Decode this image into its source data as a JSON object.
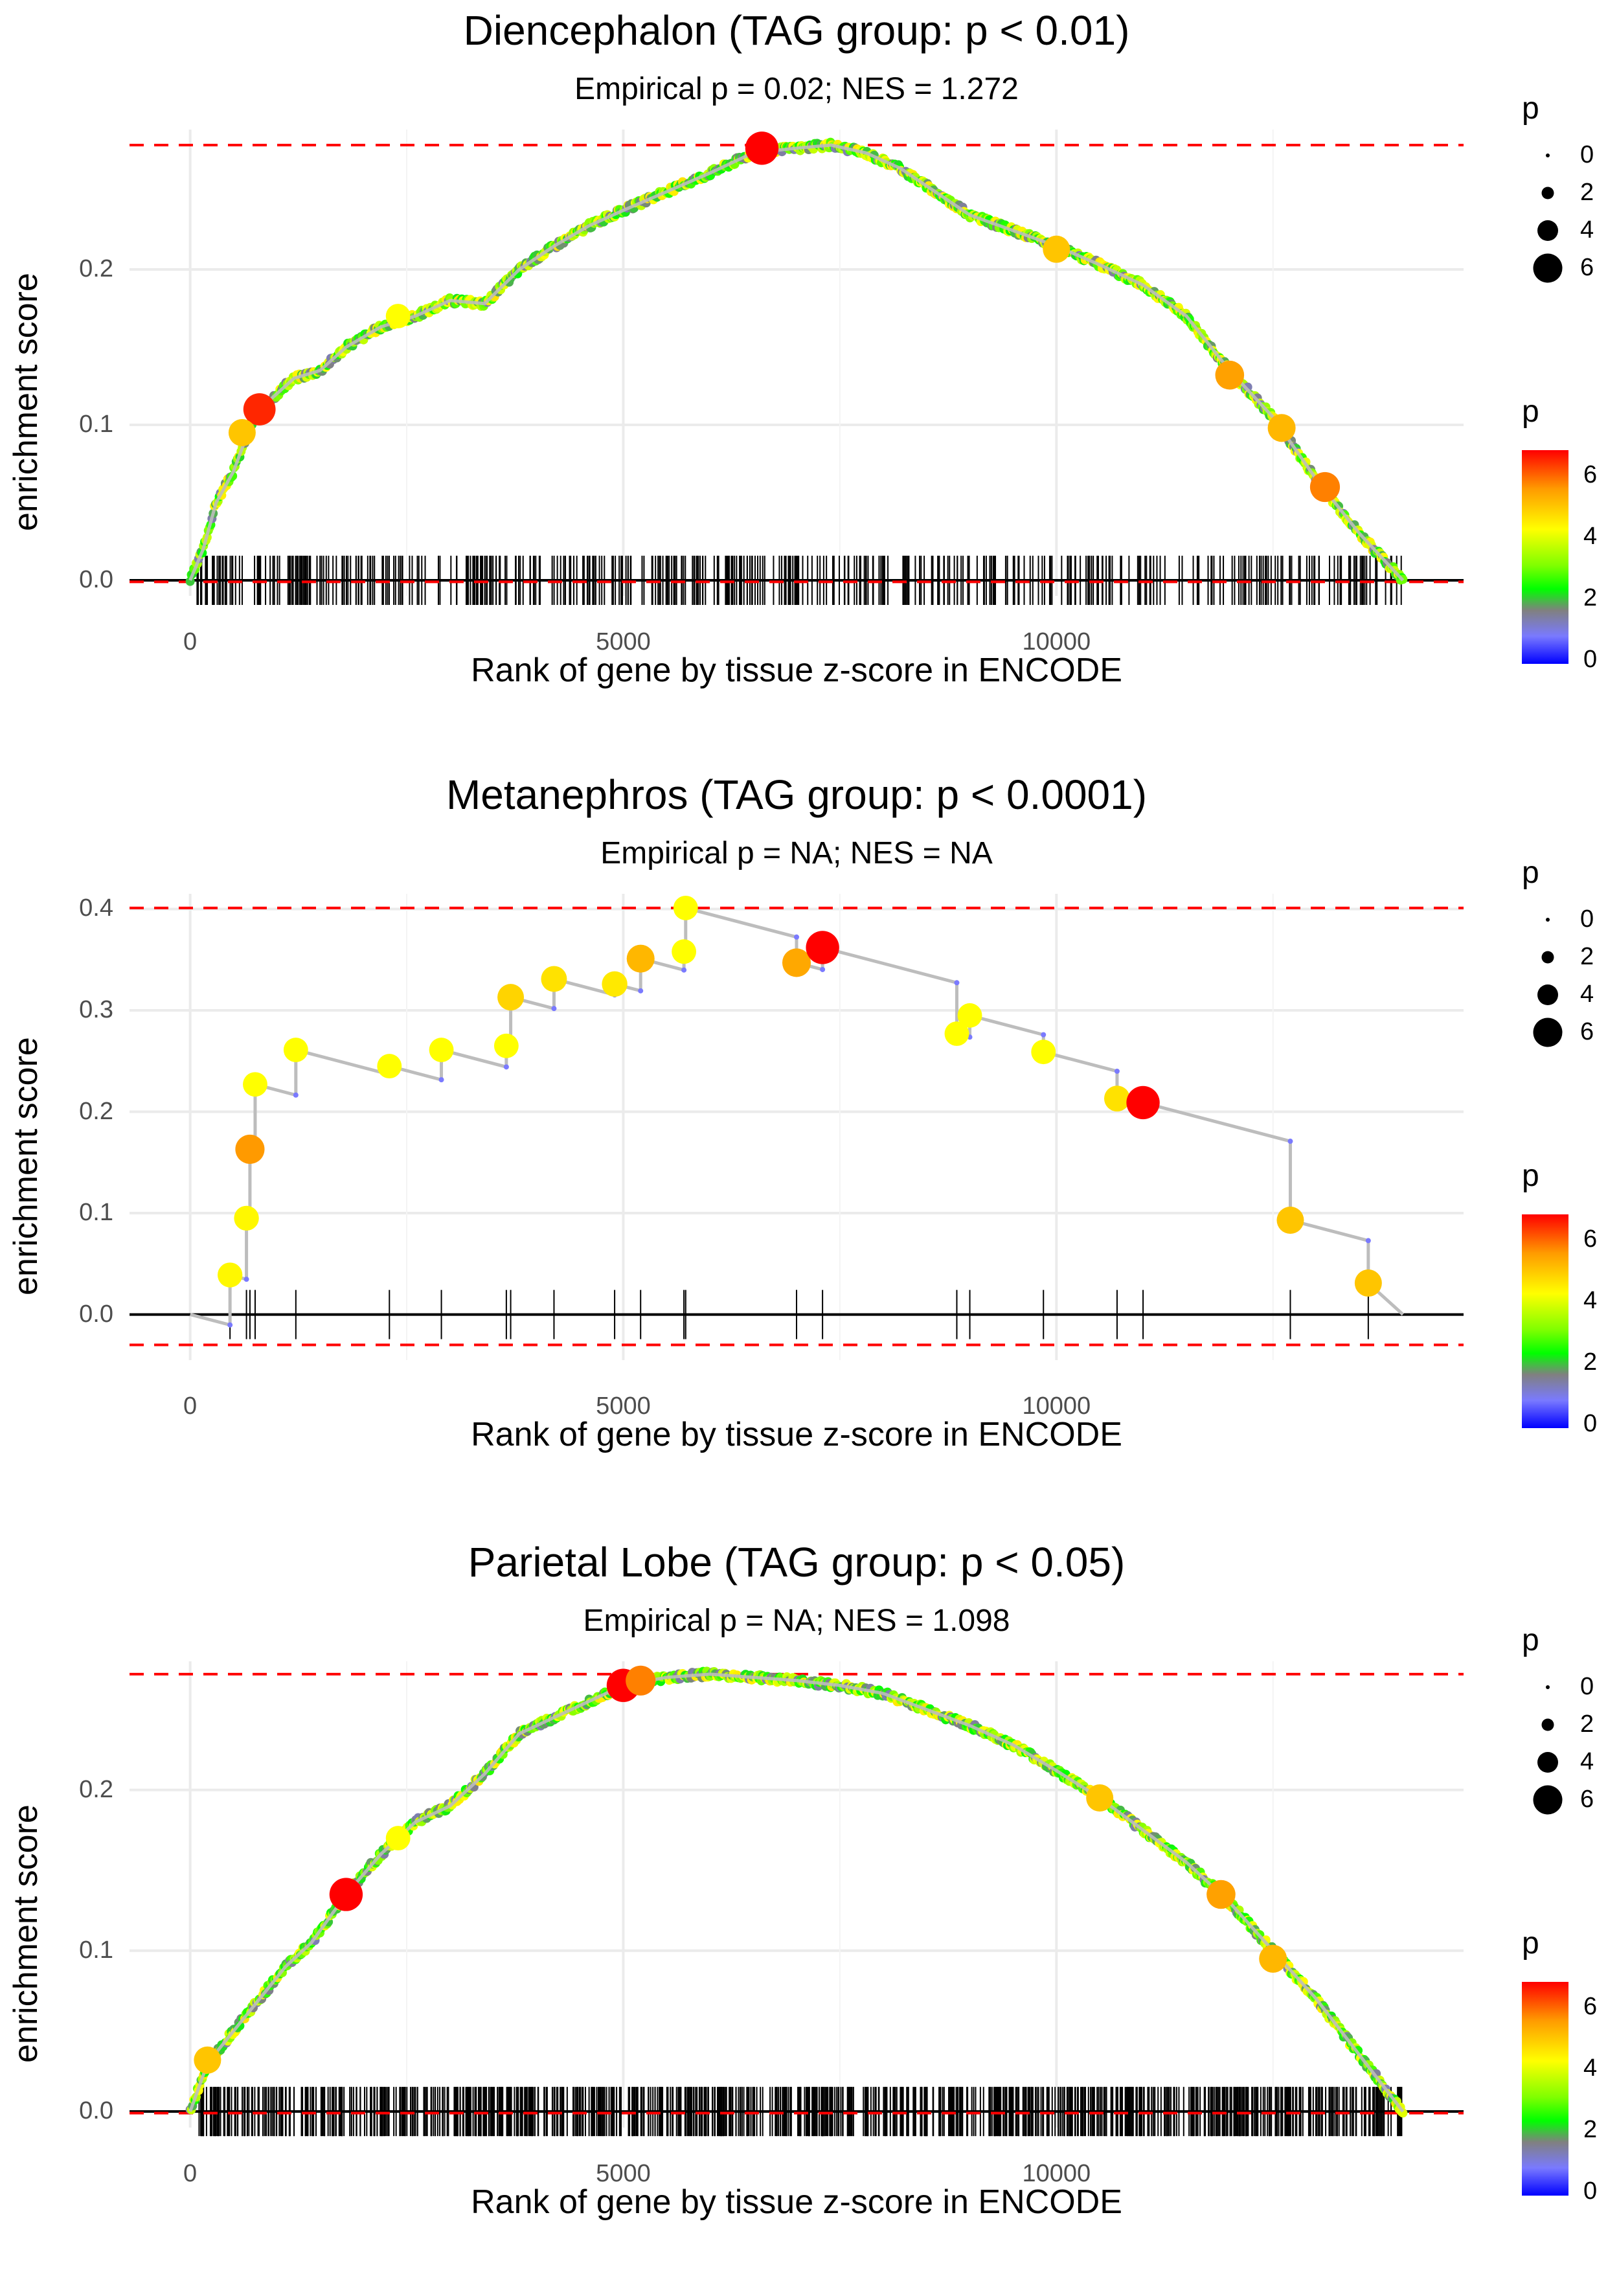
{
  "common": {
    "xlabel": "Rank of gene by tissue z-score in ENCODE",
    "ylabel": "enrichment score",
    "legend_title": "p",
    "size_legend_labels": [
      "0",
      "2",
      "4",
      "6"
    ],
    "color_legend_labels": [
      "6",
      "4",
      "2",
      "0"
    ],
    "colors": {
      "threshold_line": "#ff0000",
      "running_line": "#bdbdbd",
      "grid": "#ebebeb",
      "hit_ticks": "#000000"
    }
  },
  "chart_data": [
    {
      "type": "line",
      "title": "Diencephalon (TAG group: p < 0.01)",
      "subtitle": "Empirical p = 0.02; NES = 1.272",
      "xlabel": "Rank of gene by tissue z-score in ENCODE",
      "ylabel": "enrichment score",
      "xlim": [
        -700,
        14700
      ],
      "ylim": [
        -0.01,
        0.29
      ],
      "xticks": [
        0,
        5000,
        10000
      ],
      "yticks": [
        0.0,
        0.1,
        0.2
      ],
      "ytick_labels": [
        "0.0",
        "0.1",
        "0.2"
      ],
      "hlines": [
        0.28,
        -0.001
      ],
      "curve": [
        [
          0,
          0
        ],
        [
          150,
          0.02
        ],
        [
          300,
          0.05
        ],
        [
          500,
          0.07
        ],
        [
          700,
          0.1
        ],
        [
          900,
          0.115
        ],
        [
          1200,
          0.13
        ],
        [
          1500,
          0.135
        ],
        [
          1800,
          0.15
        ],
        [
          2200,
          0.163
        ],
        [
          2600,
          0.17
        ],
        [
          3000,
          0.18
        ],
        [
          3400,
          0.178
        ],
        [
          3800,
          0.2
        ],
        [
          4200,
          0.215
        ],
        [
          4600,
          0.228
        ],
        [
          5000,
          0.238
        ],
        [
          5500,
          0.25
        ],
        [
          6000,
          0.262
        ],
        [
          6500,
          0.275
        ],
        [
          7000,
          0.278
        ],
        [
          7400,
          0.28
        ],
        [
          7800,
          0.275
        ],
        [
          8200,
          0.265
        ],
        [
          8600,
          0.25
        ],
        [
          9000,
          0.235
        ],
        [
          9500,
          0.225
        ],
        [
          10000,
          0.215
        ],
        [
          10500,
          0.203
        ],
        [
          11000,
          0.19
        ],
        [
          11500,
          0.17
        ],
        [
          12000,
          0.135
        ],
        [
          12500,
          0.105
        ],
        [
          13000,
          0.065
        ],
        [
          13500,
          0.03
        ],
        [
          14000,
          0.0
        ]
      ],
      "highlight_points": [
        [
          800,
          0.11,
          6.5
        ],
        [
          600,
          0.095,
          5.0
        ],
        [
          2400,
          0.17,
          4.2
        ],
        [
          6600,
          0.278,
          6.8
        ],
        [
          10000,
          0.213,
          5.0
        ],
        [
          12000,
          0.132,
          5.5
        ],
        [
          12600,
          0.098,
          5.2
        ],
        [
          13100,
          0.06,
          5.8
        ]
      ],
      "hit_ranks": "dense",
      "hit_count": 470,
      "hit_range": [
        80,
        14000
      ]
    },
    {
      "type": "line",
      "title": "Metanephros (TAG group: p < 0.0001)",
      "subtitle": "Empirical p = NA; NES = NA",
      "xlabel": "Rank of gene by tissue z-score in ENCODE",
      "ylabel": "enrichment score",
      "xlim": [
        -700,
        14700
      ],
      "ylim": [
        -0.045,
        0.415
      ],
      "xticks": [
        0,
        5000,
        10000
      ],
      "yticks": [
        0.0,
        0.1,
        0.2,
        0.3,
        0.4
      ],
      "ytick_labels": [
        "0.0",
        "0.1",
        "0.2",
        "0.3",
        "0.4"
      ],
      "hlines": [
        0.401,
        -0.03
      ],
      "hits": [
        [
          460,
          0.039,
          4.3
        ],
        [
          650,
          0.095,
          4.3
        ],
        [
          690,
          0.163,
          5.6
        ],
        [
          750,
          0.227,
          4.2
        ],
        [
          1220,
          0.261,
          4.2
        ],
        [
          2300,
          0.245,
          4.2
        ],
        [
          2900,
          0.261,
          4.2
        ],
        [
          3650,
          0.265,
          4.2
        ],
        [
          3700,
          0.313,
          4.8
        ],
        [
          4200,
          0.331,
          4.6
        ],
        [
          4900,
          0.326,
          4.5
        ],
        [
          5200,
          0.351,
          5.2
        ],
        [
          5700,
          0.358,
          4.2
        ],
        [
          5720,
          0.401,
          4.2
        ],
        [
          7000,
          0.347,
          5.4
        ],
        [
          7300,
          0.362,
          6.8
        ],
        [
          8850,
          0.277,
          4.2
        ],
        [
          9000,
          0.295,
          4.2
        ],
        [
          9850,
          0.259,
          4.2
        ],
        [
          10700,
          0.213,
          4.6
        ],
        [
          11000,
          0.209,
          6.8
        ],
        [
          12700,
          0.093,
          5.0
        ],
        [
          13600,
          0.031,
          5.0
        ]
      ],
      "curve_end": [
        14000,
        0.0
      ],
      "hit_ranks": [
        460,
        650,
        690,
        750,
        1220,
        2300,
        2900,
        3650,
        3700,
        4200,
        4900,
        5200,
        5700,
        5720,
        7000,
        7300,
        8850,
        9000,
        9850,
        10700,
        11000,
        12700,
        13600
      ]
    },
    {
      "type": "line",
      "title": "Parietal Lobe (TAG group: p < 0.05)",
      "subtitle": "Empirical p = NA; NES = 1.098",
      "xlabel": "Rank of gene by tissue z-score in ENCODE",
      "ylabel": "enrichment score",
      "xlim": [
        -700,
        14700
      ],
      "ylim": [
        -0.01,
        0.28
      ],
      "xticks": [
        0,
        5000,
        10000
      ],
      "yticks": [
        0.0,
        0.1,
        0.2
      ],
      "ytick_labels": [
        "0.0",
        "0.1",
        "0.2"
      ],
      "hlines": [
        0.272,
        -0.001
      ],
      "curve": [
        [
          0,
          0
        ],
        [
          200,
          0.03
        ],
        [
          500,
          0.05
        ],
        [
          800,
          0.07
        ],
        [
          1100,
          0.09
        ],
        [
          1400,
          0.105
        ],
        [
          1800,
          0.135
        ],
        [
          2200,
          0.16
        ],
        [
          2600,
          0.18
        ],
        [
          3000,
          0.19
        ],
        [
          3400,
          0.21
        ],
        [
          3800,
          0.235
        ],
        [
          4200,
          0.245
        ],
        [
          4600,
          0.255
        ],
        [
          5000,
          0.265
        ],
        [
          5500,
          0.27
        ],
        [
          6000,
          0.272
        ],
        [
          6500,
          0.27
        ],
        [
          7000,
          0.268
        ],
        [
          7500,
          0.265
        ],
        [
          8000,
          0.26
        ],
        [
          8500,
          0.25
        ],
        [
          9000,
          0.24
        ],
        [
          9500,
          0.228
        ],
        [
          10000,
          0.212
        ],
        [
          10500,
          0.195
        ],
        [
          11000,
          0.175
        ],
        [
          11500,
          0.155
        ],
        [
          12000,
          0.13
        ],
        [
          12500,
          0.1
        ],
        [
          13000,
          0.07
        ],
        [
          13500,
          0.035
        ],
        [
          14000,
          0.0
        ]
      ],
      "highlight_points": [
        [
          200,
          0.032,
          5.0
        ],
        [
          1800,
          0.135,
          6.8
        ],
        [
          2400,
          0.17,
          4.2
        ],
        [
          5000,
          0.265,
          6.8
        ],
        [
          5200,
          0.268,
          5.8
        ],
        [
          10500,
          0.195,
          5.0
        ],
        [
          11900,
          0.135,
          5.5
        ],
        [
          12500,
          0.095,
          5.2
        ]
      ],
      "hit_ranks": "dense",
      "hit_count": 900,
      "hit_range": [
        80,
        14000
      ]
    }
  ]
}
